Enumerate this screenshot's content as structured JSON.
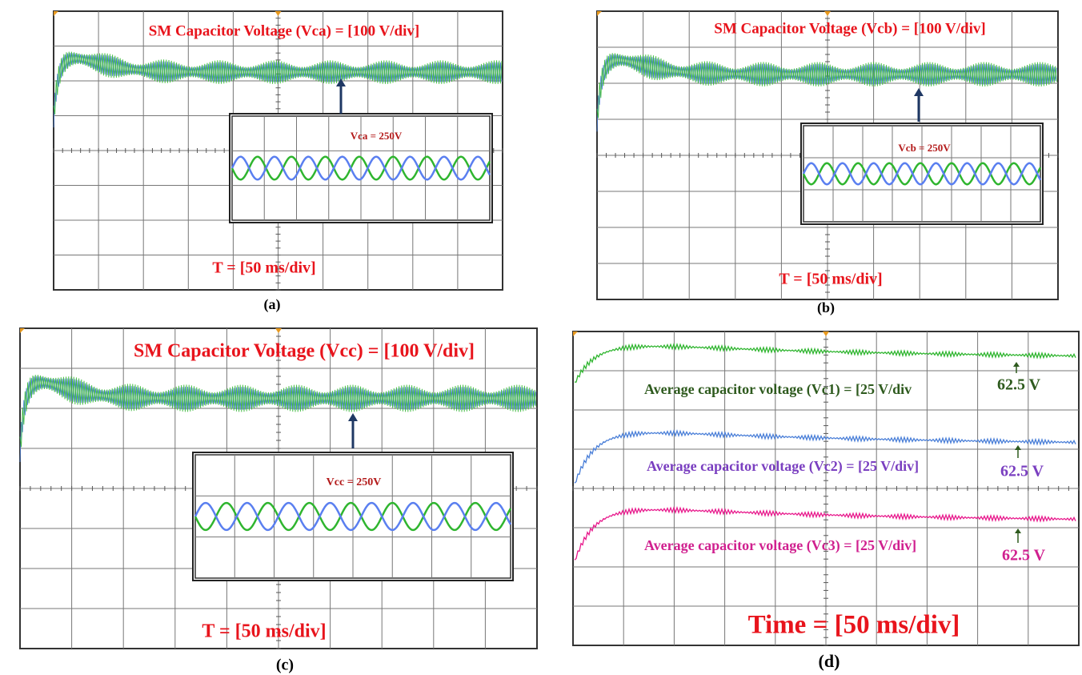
{
  "panels": [
    {
      "label": "(a)",
      "title": "SM Capacitor Voltage (Vca) = [100 V/div]",
      "time": "T = [50 ms/div]",
      "inset": "Vca = 250V"
    },
    {
      "label": "(b)",
      "title": "SM Capacitor Voltage (Vcb) = [100 V/div]",
      "time": "T = [50 ms/div]",
      "inset": "Vcb = 250V"
    },
    {
      "label": "(c)",
      "title": "SM Capacitor Voltage (Vcc) = [100 V/div]",
      "time": "T = [50 ms/div]",
      "inset": "Vcc = 250V"
    },
    {
      "label": "(d)",
      "time": "Time = [50 ms/div]",
      "traces": [
        {
          "text": "Average capacitor voltage (Vc1) = [25 V/div",
          "value": "62.5 V"
        },
        {
          "text": "Average capacitor voltage (Vc2) = [25 V/div]",
          "value": "62.5 V"
        },
        {
          "text": "Average capacitor voltage (Vc3) = [25 V/div]",
          "value": "62.5 V"
        }
      ]
    }
  ]
}
